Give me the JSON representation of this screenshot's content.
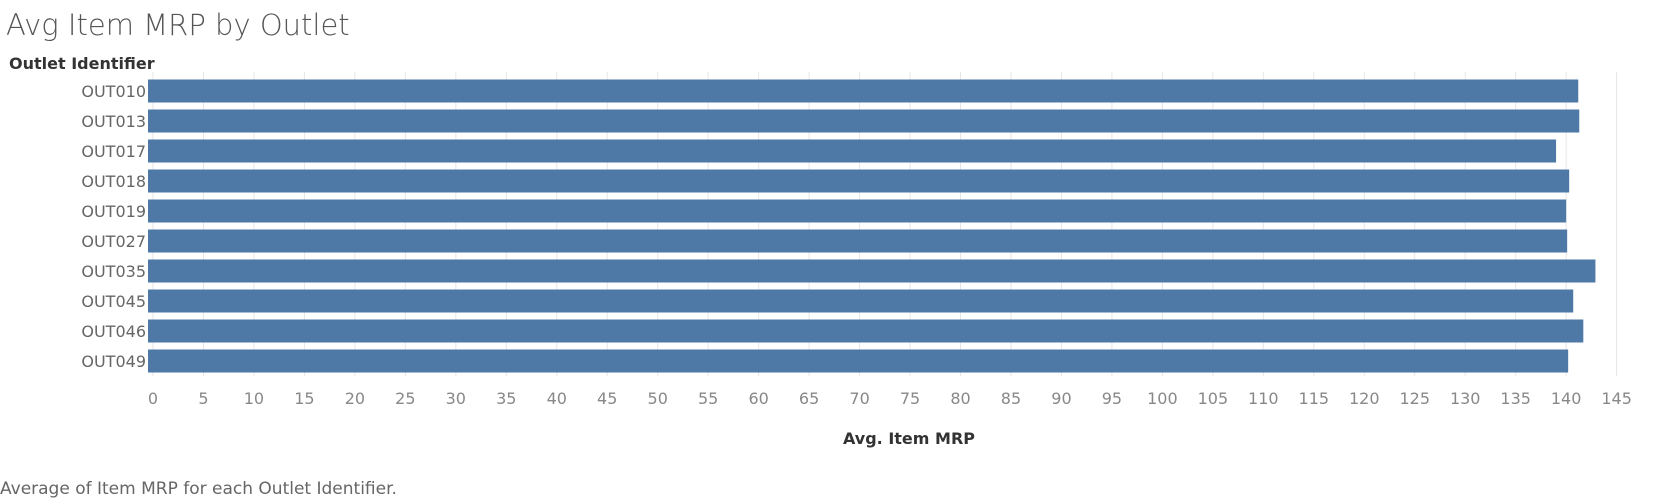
{
  "title": "Avg Item MRP by Outlet",
  "row_header": "Outlet Identifier",
  "caption": "Average of Item MRP for each Outlet Identifier.",
  "colors": {
    "bar": "#4e79a7",
    "grid": "#e6e6e6",
    "axis_text": "#888888"
  },
  "chart_data": {
    "type": "bar",
    "orientation": "horizontal",
    "title": "Avg Item MRP by Outlet",
    "ylabel": "Outlet Identifier",
    "xlabel": "Avg. Item MRP",
    "categories": [
      "OUT010",
      "OUT013",
      "OUT017",
      "OUT018",
      "OUT019",
      "OUT027",
      "OUT035",
      "OUT045",
      "OUT046",
      "OUT049"
    ],
    "values": [
      141.2,
      141.3,
      139.0,
      140.3,
      140.0,
      140.1,
      142.9,
      140.7,
      141.7,
      140.2
    ],
    "xlim": [
      0,
      149
    ],
    "xticks": [
      0,
      5,
      10,
      15,
      20,
      25,
      30,
      35,
      40,
      45,
      50,
      55,
      60,
      65,
      70,
      75,
      80,
      85,
      90,
      95,
      100,
      105,
      110,
      115,
      120,
      125,
      130,
      135,
      140,
      145
    ],
    "grid": true
  }
}
